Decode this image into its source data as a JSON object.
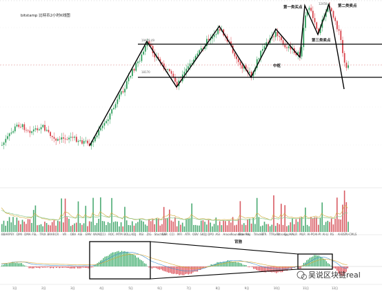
{
  "chart_data": {
    "type": "candlestick",
    "title": "bitstamp 比特币2小时K线图",
    "price_labels": {
      "high_line": "19479.49",
      "low_line": "18170",
      "top_price": "12458"
    },
    "annotations": {
      "first_buy": "第一类买点",
      "second_sell": "第二类卖点",
      "third_sell": "第三类卖点",
      "center": "中枢",
      "divergence": "背驰"
    },
    "x_ticks": [
      "1日",
      "2日",
      "3日",
      "4日",
      "5日",
      "6日",
      "7日",
      "8日",
      "9日",
      "10日",
      "11日",
      "12日"
    ],
    "indicator_labels": [
      "BBAR",
      "PSY",
      "DMI",
      "DMA",
      "FSL",
      "TRIX",
      "BRAR",
      "CR",
      "VR",
      "OBV",
      "ASI",
      "EMV",
      "WVAD",
      "CCI",
      "ROC",
      "MTM",
      "BOLL",
      "KDJ",
      "RSI",
      "ZIG",
      "StochRSI",
      "SAR",
      "CCI",
      "MFI",
      "ATR",
      "OBV",
      "SKDJ",
      "DPO",
      "ASI",
      "Aroon",
      "RoundBar",
      "ElderRay",
      "HV",
      "TrIndex",
      "TTR",
      "TTRand",
      "Tstrong",
      "ExpMA",
      "ALR",
      "MLR",
      "AI-PO",
      "AI-PI",
      "AI-LI",
      "RS",
      "AI-BST",
      "AI-CMLS"
    ],
    "watermark": "吴说区块链real"
  }
}
